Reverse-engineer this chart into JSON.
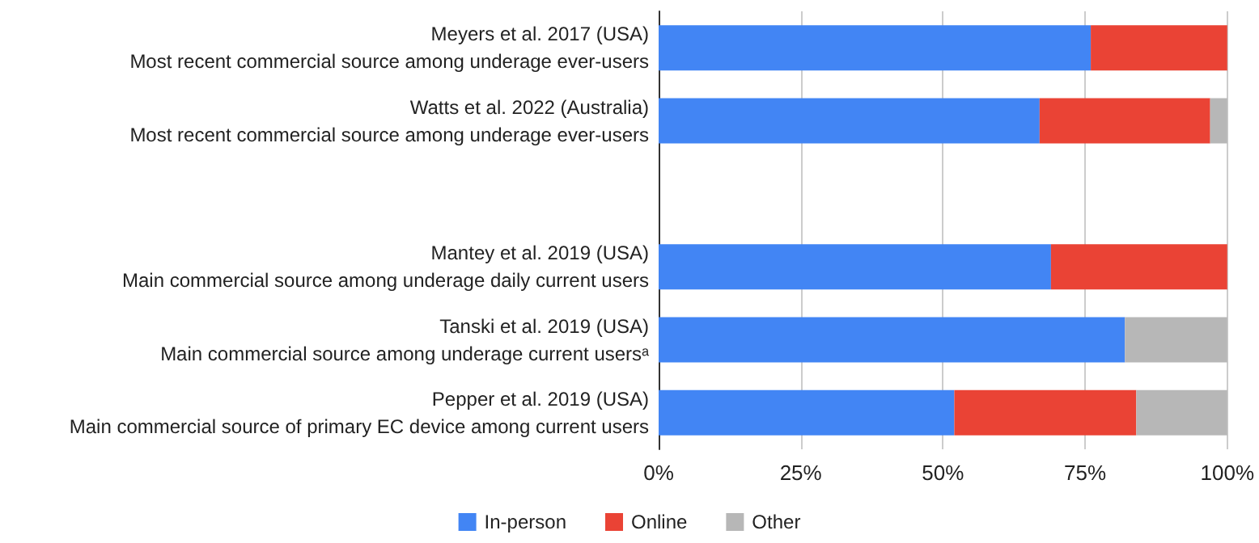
{
  "chart_data": {
    "type": "bar",
    "orientation": "horizontal",
    "stacked": true,
    "categories": [
      "Meyers et al. 2017 (USA)\nMost recent commercial source among underage ever-users",
      "Watts et al. 2022 (Australia)\nMost recent commercial source among underage ever-users",
      null,
      "Mantey et al. 2019 (USA)\nMain commercial source among underage daily current users",
      "Tanski et al. 2019 (USA)\nMain commercial source among underage current usersᵃ",
      "Pepper et al. 2019 (USA)\nMain commercial source of primary EC device among current users"
    ],
    "series": [
      {
        "name": "In-person",
        "color": "#4285f4",
        "values": [
          76,
          67,
          null,
          69,
          82,
          52
        ]
      },
      {
        "name": "Online",
        "color": "#ea4335",
        "values": [
          24,
          30,
          null,
          31,
          null,
          32
        ]
      },
      {
        "name": "Other",
        "color": "#b7b7b7",
        "values": [
          null,
          3,
          null,
          null,
          18,
          16
        ]
      }
    ],
    "xlim": [
      0,
      100
    ],
    "xticks": [
      {
        "value": 0,
        "label": "0%"
      },
      {
        "value": 25,
        "label": "25%"
      },
      {
        "value": 50,
        "label": "50%"
      },
      {
        "value": 75,
        "label": "75%"
      },
      {
        "value": 100,
        "label": "100%"
      }
    ],
    "grid": "x",
    "legend": "bottom"
  }
}
